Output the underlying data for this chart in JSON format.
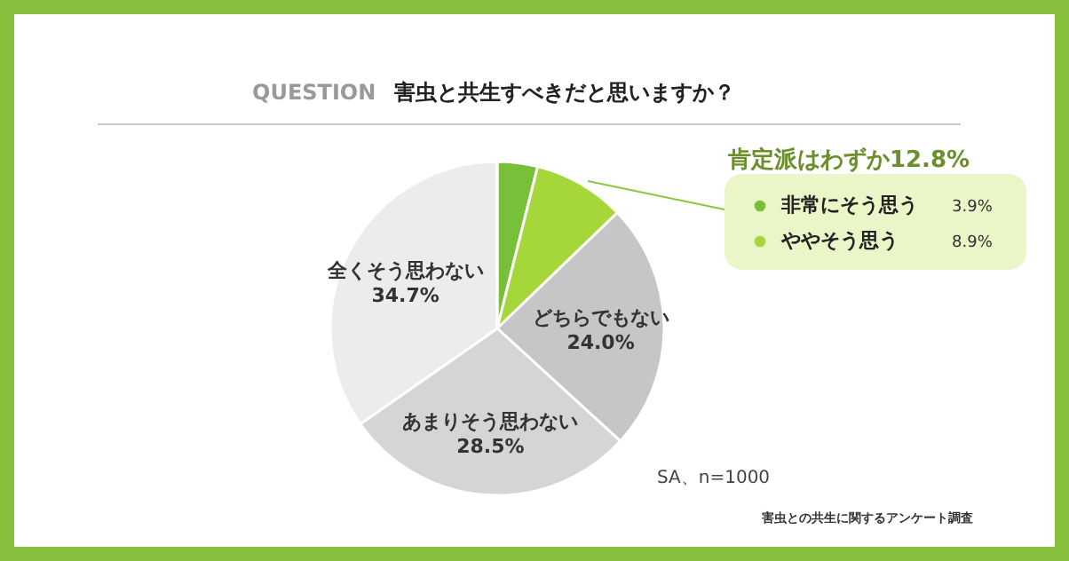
{
  "chart_data": {
    "type": "pie",
    "title": "QUESTION",
    "subtitle": "害虫と共生すべきだと思いますか？",
    "categories": [
      "非常にそう思う",
      "ややそう思う",
      "どちらでもない",
      "あまりそう思わない",
      "全くそう思わない"
    ],
    "values": [
      3.9,
      8.9,
      24.0,
      28.5,
      34.7
    ],
    "colors": [
      "#78bf3a",
      "#a5d63a",
      "#c6c6c6",
      "#d5d5d5",
      "#ececec"
    ],
    "value_labels": [
      "3.9%",
      "8.9%",
      "24.0%",
      "28.5%",
      "34.7%"
    ],
    "legend": "top right",
    "annotations": [
      "肯定派はわずか12.8%",
      "SA、n=1000",
      "害虫との共生に関するアンケート調査"
    ]
  }
}
